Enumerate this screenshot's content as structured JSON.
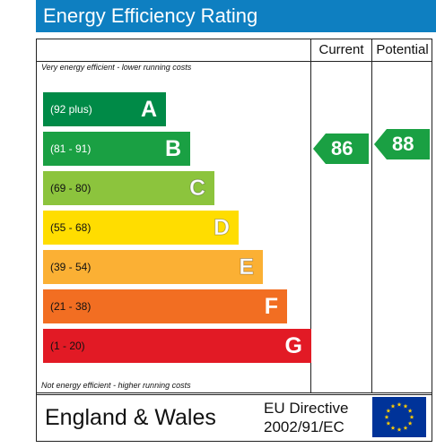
{
  "header": {
    "title": "Energy Efficiency Rating"
  },
  "columns": {
    "current": "Current",
    "potential": "Potential"
  },
  "notes": {
    "top": "Very energy efficient - lower running costs",
    "bottom": "Not energy efficient - higher running costs"
  },
  "bands": [
    {
      "range": "(92 plus)",
      "letter": "A",
      "color": "#008a47"
    },
    {
      "range": "(81 - 91)",
      "letter": "B",
      "color": "#1aa043"
    },
    {
      "range": "(69 - 80)",
      "letter": "C",
      "color": "#8cc43d"
    },
    {
      "range": "(55 - 68)",
      "letter": "D",
      "color": "#ffdd00"
    },
    {
      "range": "(39 - 54)",
      "letter": "E",
      "color": "#fbb034"
    },
    {
      "range": "(21 - 38)",
      "letter": "F",
      "color": "#f26e22"
    },
    {
      "range": "(1 - 20)",
      "letter": "G",
      "color": "#e21a25"
    }
  ],
  "ratings": {
    "current": {
      "value": "86",
      "band": "B",
      "color": "#1aa043"
    },
    "potential": {
      "value": "88",
      "band": "B",
      "color": "#1aa043"
    }
  },
  "footer": {
    "region": "England & Wales",
    "directive_line1": "EU Directive",
    "directive_line2": "2002/91/EC",
    "flag_icon": "eu-flag-icon",
    "flag_color": "#003399",
    "star_color": "#ffcc00"
  }
}
